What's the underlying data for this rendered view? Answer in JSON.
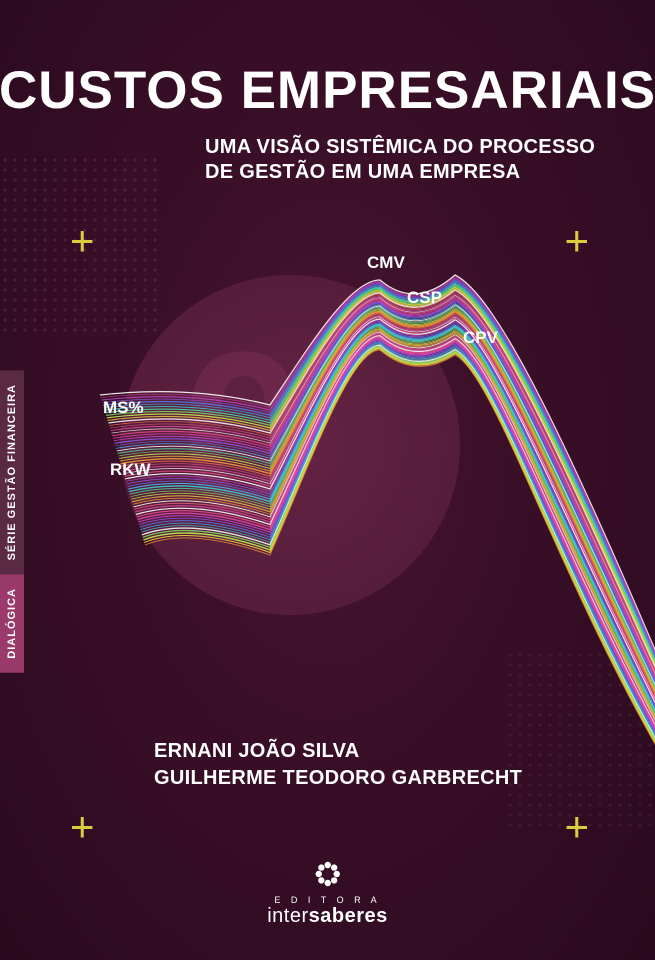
{
  "title": "CUSTOS EMPRESARIAIS",
  "subtitle_line1": "UMA VISÃO SISTÊMICA DO PROCESSO",
  "subtitle_line2": "DE GESTÃO EM UMA EMPRESA",
  "side_series": "SÉRIE GESTÃO FINANCEIRA",
  "side_dialogica": "DIALÓGICA",
  "labels": {
    "cmv": "CMV",
    "csp": "CSP",
    "cpv": "CPV",
    "ms": "MS%",
    "rkw": "RKW"
  },
  "big_number": "0",
  "author1": "ERNANI JOÃO SILVA",
  "author2": "GUILHERME TEODORO GARBRECHT",
  "publisher": {
    "editora": "E D I T O R A",
    "brand_prefix": "inter",
    "brand_suffix": "saberes"
  },
  "colors": {
    "background_center": "#4a1530",
    "background_edge": "#2a0a1e",
    "circle": "#6a2548",
    "accent_plus": "#d9cc3e",
    "text": "#ffffff",
    "tab_series_bg": "#5a2a42",
    "tab_dialogica_bg": "#9a3a6a",
    "dot_pattern": "#6d3a55"
  },
  "wave_art": {
    "type": "line-ribbon",
    "line_count": 60,
    "line_colors": [
      "#e84a8f",
      "#d946a3",
      "#c44bd6",
      "#8e5cf0",
      "#5a7cf5",
      "#4aa8e8",
      "#3fc7c7",
      "#4ed9a0",
      "#7de068",
      "#b8e04a",
      "#e8c83f",
      "#f09a3a",
      "#eb6a4a",
      "#e05a7a",
      "#d94aa0",
      "#ffffff"
    ],
    "line_width_range": [
      0.6,
      1.4
    ],
    "control_points_desc": "Lines originate staggered at left (y 130..280), dip, rise to twin peaks near x 300 and x 370 (y ~15..80), then cascade down-right to x 580 y 430..510",
    "background_behind": "circle #6a2548 r170",
    "opacity": 0.95
  }
}
